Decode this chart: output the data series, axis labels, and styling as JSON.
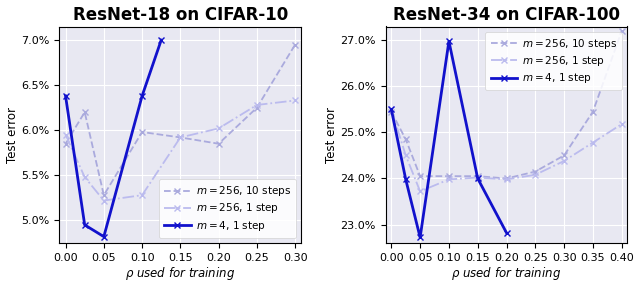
{
  "left": {
    "title": "ResNet-18 on CIFAR-10",
    "xlabel": "ρ used for training",
    "ylabel": "Test error",
    "ylim": [
      4.75,
      7.15
    ],
    "yticks": [
      5.0,
      5.5,
      6.0,
      6.5,
      7.0
    ],
    "ytick_labels": [
      "5.0%",
      "5.5%",
      "6.0%",
      "6.5%",
      "7.0%"
    ],
    "xlim": [
      -0.008,
      0.308
    ],
    "xticks": [
      0.0,
      0.05,
      0.1,
      0.15,
      0.2,
      0.25,
      0.3
    ],
    "xtick_labels": [
      "0.00",
      "0.05",
      "0.10",
      "0.15",
      "0.20",
      "0.25",
      "0.30"
    ],
    "series": [
      {
        "label": "$m = 256$, 10 steps",
        "color": "#aaaadd",
        "linestyle": "--",
        "marker": "x",
        "markersize": 4,
        "linewidth": 1.3,
        "x": [
          0.0,
          0.025,
          0.05,
          0.1,
          0.15,
          0.2,
          0.25,
          0.3
        ],
        "y": [
          5.85,
          6.2,
          5.28,
          5.98,
          5.92,
          5.85,
          6.25,
          6.95
        ]
      },
      {
        "label": "$m = 256$, 1 step",
        "color": "#bbbbee",
        "linestyle": "-.",
        "marker": "x",
        "markersize": 4,
        "linewidth": 1.3,
        "x": [
          0.0,
          0.025,
          0.05,
          0.1,
          0.15,
          0.2,
          0.25,
          0.3
        ],
        "y": [
          5.95,
          5.48,
          5.22,
          5.28,
          5.92,
          6.02,
          6.28,
          6.33
        ]
      },
      {
        "label": "$m = 4$, 1 step",
        "color": "#1111cc",
        "linestyle": "-",
        "marker": "x",
        "markersize": 5,
        "linewidth": 2.0,
        "x": [
          0.0,
          0.025,
          0.05,
          0.1,
          0.125
        ],
        "y": [
          6.38,
          4.95,
          4.82,
          6.38,
          7.0
        ]
      }
    ],
    "legend_loc": "lower right"
  },
  "right": {
    "title": "ResNet-34 on CIFAR-100",
    "xlabel": "ρ used for training",
    "ylabel": "Test error",
    "ylim": [
      22.6,
      27.3
    ],
    "yticks": [
      23.0,
      24.0,
      25.0,
      26.0,
      27.0
    ],
    "ytick_labels": [
      "23.0%",
      "24.0%",
      "25.0%",
      "26.0%",
      "27.0%"
    ],
    "xlim": [
      -0.01,
      0.41
    ],
    "xticks": [
      0.0,
      0.05,
      0.1,
      0.15,
      0.2,
      0.25,
      0.3,
      0.35,
      0.4
    ],
    "xtick_labels": [
      "0.00",
      "0.05",
      "0.10",
      "0.15",
      "0.20",
      "0.25",
      "0.30",
      "0.35",
      "0.40"
    ],
    "series": [
      {
        "label": "$m = 256$, 10 steps",
        "color": "#aaaadd",
        "linestyle": "--",
        "marker": "x",
        "markersize": 4,
        "linewidth": 1.3,
        "x": [
          0.0,
          0.025,
          0.05,
          0.1,
          0.15,
          0.2,
          0.25,
          0.3,
          0.35,
          0.4
        ],
        "y": [
          25.45,
          24.85,
          24.05,
          24.05,
          24.05,
          24.0,
          24.15,
          24.5,
          25.45,
          27.2
        ]
      },
      {
        "label": "$m = 256$, 1 step",
        "color": "#bbbbee",
        "linestyle": "-.",
        "marker": "x",
        "markersize": 4,
        "linewidth": 1.3,
        "x": [
          0.0,
          0.025,
          0.05,
          0.1,
          0.15,
          0.2,
          0.25,
          0.3,
          0.35,
          0.4
        ],
        "y": [
          25.5,
          24.5,
          23.72,
          23.98,
          24.02,
          23.98,
          24.08,
          24.38,
          24.78,
          25.18
        ]
      },
      {
        "label": "$m = 4$, 1 step",
        "color": "#1111cc",
        "linestyle": "-",
        "marker": "x",
        "markersize": 5,
        "linewidth": 2.0,
        "x": [
          0.0,
          0.025,
          0.05,
          0.1,
          0.15,
          0.2
        ],
        "y": [
          25.5,
          23.98,
          22.72,
          26.98,
          24.0,
          22.82
        ]
      }
    ],
    "legend_loc": "upper right"
  },
  "bg_color": "#e8e8f2",
  "title_fontsize": 12,
  "axis_label_fontsize": 8.5,
  "tick_fontsize": 8
}
